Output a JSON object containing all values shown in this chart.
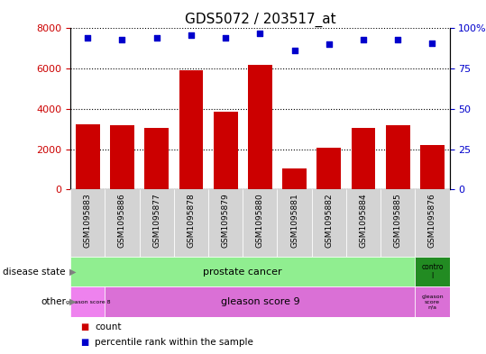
{
  "title": "GDS5072 / 203517_at",
  "samples": [
    "GSM1095883",
    "GSM1095886",
    "GSM1095877",
    "GSM1095878",
    "GSM1095879",
    "GSM1095880",
    "GSM1095881",
    "GSM1095882",
    "GSM1095884",
    "GSM1095885",
    "GSM1095876"
  ],
  "counts": [
    3250,
    3200,
    3050,
    5900,
    3850,
    6200,
    1050,
    2050,
    3050,
    3200,
    2200
  ],
  "percentiles": [
    94,
    93,
    94,
    96,
    94,
    97,
    86,
    90,
    93,
    93,
    91
  ],
  "bar_color": "#cc0000",
  "dot_color": "#0000cc",
  "ylim_left": [
    0,
    8000
  ],
  "ylim_right": [
    0,
    100
  ],
  "yticks_left": [
    0,
    2000,
    4000,
    6000,
    8000
  ],
  "yticks_right": [
    0,
    25,
    50,
    75,
    100
  ],
  "ytick_labels_right": [
    "0",
    "25",
    "50",
    "75",
    "100%"
  ],
  "prostate_cancer_color": "#90ee90",
  "control_color": "#228b22",
  "gleason8_color": "#ee82ee",
  "gleason9_color": "#da70d6",
  "gleasonNA_color": "#da70d6",
  "xticklabel_bg_color": "#d3d3d3",
  "legend_count_color": "#cc0000",
  "legend_dot_color": "#0000cc",
  "title_fontsize": 11,
  "axis_label_color_left": "#cc0000",
  "axis_label_color_right": "#0000cc"
}
